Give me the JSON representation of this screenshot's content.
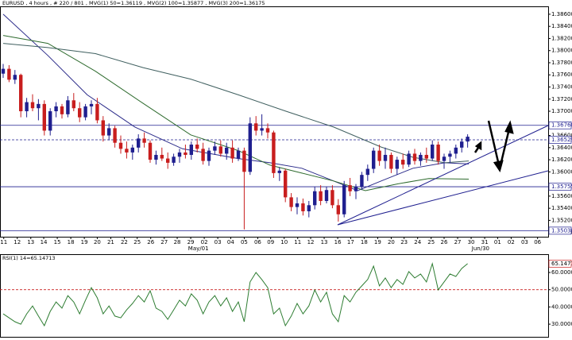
{
  "chart_data": [
    {
      "type": "candlestick",
      "title": "EURUSD , 4 hours , # 220 / 801 , MVG(1) 50=1.36119 , MVG(2) 100=1.35877 , MVG(3) 200=1.36175",
      "xlim": [
        -0.54,
        92.7
      ],
      "ylim": [
        1.3493,
        1.3873
      ],
      "yticks": [
        {
          "value": 1.386,
          "label": "1.38600"
        },
        {
          "value": 1.384,
          "label": "1.38400"
        },
        {
          "value": 1.382,
          "label": "1.38200"
        },
        {
          "value": 1.38,
          "label": "1.38000"
        },
        {
          "value": 1.378,
          "label": "1.37800"
        },
        {
          "value": 1.376,
          "label": "1.37600"
        },
        {
          "value": 1.374,
          "label": "1.37400"
        },
        {
          "value": 1.372,
          "label": "1.37200"
        },
        {
          "value": 1.37,
          "label": "1.37000"
        },
        {
          "value": 1.366,
          "label": "1.36600"
        },
        {
          "value": 1.364,
          "label": "1.36400"
        },
        {
          "value": 1.362,
          "label": "1.36200"
        },
        {
          "value": 1.36,
          "label": "1.36000"
        },
        {
          "value": 1.356,
          "label": "1.35600"
        },
        {
          "value": 1.354,
          "label": "1.35400"
        },
        {
          "value": 1.352,
          "label": "1.35200"
        },
        {
          "value": 1.35,
          "label": "1.35000"
        }
      ],
      "xticks": [
        {
          "value": 0.1,
          "label": "11"
        },
        {
          "value": 2.4,
          "label": "12"
        },
        {
          "value": 4.7,
          "label": "13"
        },
        {
          "value": 6.9,
          "label": "14"
        },
        {
          "value": 9.2,
          "label": "15"
        },
        {
          "value": 11.5,
          "label": "18"
        },
        {
          "value": 13.8,
          "label": "19"
        },
        {
          "value": 16.0,
          "label": "20"
        },
        {
          "value": 18.3,
          "label": "21"
        },
        {
          "value": 20.6,
          "label": "22"
        },
        {
          "value": 22.8,
          "label": "25"
        },
        {
          "value": 25.1,
          "label": "26"
        },
        {
          "value": 27.4,
          "label": "27"
        },
        {
          "value": 29.6,
          "label": "28"
        },
        {
          "value": 31.9,
          "label": "29"
        },
        {
          "value": 34.2,
          "label": "02"
        },
        {
          "value": 36.5,
          "label": "03"
        },
        {
          "value": 38.7,
          "label": "04"
        },
        {
          "value": 41.0,
          "label": "05"
        },
        {
          "value": 43.3,
          "label": "06"
        },
        {
          "value": 45.5,
          "label": "09"
        },
        {
          "value": 47.8,
          "label": "10"
        },
        {
          "value": 50.1,
          "label": "11"
        },
        {
          "value": 52.3,
          "label": "12"
        },
        {
          "value": 54.6,
          "label": "13"
        },
        {
          "value": 56.9,
          "label": "16"
        },
        {
          "value": 59.1,
          "label": "17"
        },
        {
          "value": 61.4,
          "label": "18"
        },
        {
          "value": 63.7,
          "label": "19"
        },
        {
          "value": 66.0,
          "label": "20"
        },
        {
          "value": 68.2,
          "label": "23"
        },
        {
          "value": 70.5,
          "label": "24"
        },
        {
          "value": 72.8,
          "label": "25"
        },
        {
          "value": 75.0,
          "label": "26"
        },
        {
          "value": 77.3,
          "label": "27"
        },
        {
          "value": 79.6,
          "label": "30"
        },
        {
          "value": 81.9,
          "label": "31"
        },
        {
          "value": 84.1,
          "label": "01"
        },
        {
          "value": 86.4,
          "label": "02"
        },
        {
          "value": 88.7,
          "label": "03"
        },
        {
          "value": 90.9,
          "label": "06"
        }
      ],
      "x_sublabels": [
        {
          "value": 33.2,
          "label": "May/01"
        },
        {
          "value": 81.2,
          "label": "Jun/30"
        }
      ],
      "up_color": "#1f1f8f",
      "down_color": "#c81e1e",
      "x": [
        0,
        1,
        2,
        3,
        4,
        5,
        6,
        7,
        8,
        9,
        10,
        11,
        12,
        13,
        14,
        15,
        16,
        17,
        18,
        19,
        20,
        21,
        22,
        23,
        24,
        25,
        26,
        27,
        28,
        29,
        30,
        31,
        32,
        33,
        34,
        35,
        36,
        37,
        38,
        39,
        40,
        41,
        42,
        43,
        44,
        45,
        46,
        47,
        48,
        49,
        50,
        51,
        52,
        53,
        54,
        55,
        56,
        57,
        58,
        59,
        60,
        61,
        62,
        63,
        64,
        65,
        66,
        67,
        68,
        69,
        70,
        71,
        72,
        73,
        74,
        75,
        76,
        77,
        78,
        79
      ],
      "open": [
        1.3762,
        1.377,
        1.3752,
        1.376,
        1.37,
        1.3715,
        1.3705,
        1.3712,
        1.3668,
        1.37,
        1.3708,
        1.3695,
        1.3718,
        1.3705,
        1.369,
        1.3708,
        1.3712,
        1.3685,
        1.366,
        1.3672,
        1.3648,
        1.3638,
        1.3632,
        1.364,
        1.3655,
        1.3648,
        1.362,
        1.3628,
        1.3622,
        1.3615,
        1.3625,
        1.3632,
        1.3628,
        1.3645,
        1.3638,
        1.3618,
        1.3635,
        1.3642,
        1.363,
        1.364,
        1.3622,
        1.3635,
        1.36,
        1.368,
        1.3668,
        1.3672,
        1.3665,
        1.3598,
        1.3602,
        1.3558,
        1.3542,
        1.3548,
        1.3535,
        1.3545,
        1.3568,
        1.3552,
        1.357,
        1.3545,
        1.353,
        1.3578,
        1.3568,
        1.3575,
        1.3595,
        1.3605,
        1.3635,
        1.3618,
        1.3628,
        1.3605,
        1.362,
        1.3612,
        1.363,
        1.3618,
        1.3628,
        1.3622,
        1.3645,
        1.3618,
        1.3625,
        1.363,
        1.364,
        1.365
      ],
      "high": [
        1.3778,
        1.3776,
        1.3768,
        1.3762,
        1.3722,
        1.3728,
        1.372,
        1.3718,
        1.3705,
        1.3715,
        1.3712,
        1.3725,
        1.373,
        1.3715,
        1.3712,
        1.3718,
        1.3722,
        1.3692,
        1.368,
        1.3676,
        1.366,
        1.365,
        1.3645,
        1.3662,
        1.3665,
        1.3652,
        1.3635,
        1.364,
        1.3632,
        1.363,
        1.3638,
        1.3645,
        1.365,
        1.3655,
        1.3648,
        1.364,
        1.365,
        1.3652,
        1.3648,
        1.3652,
        1.364,
        1.364,
        1.369,
        1.3692,
        1.3695,
        1.368,
        1.3668,
        1.3608,
        1.3605,
        1.3565,
        1.3558,
        1.3556,
        1.3552,
        1.3575,
        1.3578,
        1.3575,
        1.3578,
        1.3555,
        1.3585,
        1.359,
        1.358,
        1.36,
        1.3612,
        1.364,
        1.3645,
        1.364,
        1.3632,
        1.3625,
        1.363,
        1.3635,
        1.3638,
        1.3632,
        1.364,
        1.3652,
        1.365,
        1.363,
        1.3635,
        1.3645,
        1.3655,
        1.3662
      ],
      "low": [
        1.3755,
        1.3748,
        1.3745,
        1.369,
        1.369,
        1.37,
        1.3685,
        1.366,
        1.366,
        1.369,
        1.3688,
        1.369,
        1.37,
        1.3682,
        1.3685,
        1.3695,
        1.368,
        1.365,
        1.3652,
        1.364,
        1.363,
        1.3622,
        1.362,
        1.3632,
        1.364,
        1.3615,
        1.3612,
        1.3618,
        1.3605,
        1.361,
        1.3615,
        1.3622,
        1.362,
        1.3632,
        1.3612,
        1.361,
        1.3628,
        1.3625,
        1.362,
        1.3615,
        1.3618,
        1.3505,
        1.3595,
        1.366,
        1.366,
        1.3655,
        1.359,
        1.3585,
        1.355,
        1.3535,
        1.353,
        1.3528,
        1.3525,
        1.3538,
        1.3545,
        1.3548,
        1.354,
        1.3518,
        1.3525,
        1.356,
        1.3555,
        1.357,
        1.3585,
        1.3598,
        1.361,
        1.3605,
        1.3598,
        1.3595,
        1.3605,
        1.3608,
        1.3612,
        1.361,
        1.3615,
        1.3618,
        1.3612,
        1.3605,
        1.3615,
        1.3622,
        1.3632,
        1.364
      ],
      "close": [
        1.377,
        1.3752,
        1.376,
        1.37,
        1.3715,
        1.3705,
        1.3712,
        1.3668,
        1.37,
        1.3708,
        1.3695,
        1.3718,
        1.3705,
        1.369,
        1.3708,
        1.3712,
        1.3685,
        1.366,
        1.3672,
        1.3648,
        1.3638,
        1.3632,
        1.364,
        1.3655,
        1.3648,
        1.362,
        1.3628,
        1.3622,
        1.3615,
        1.3625,
        1.3632,
        1.3628,
        1.3645,
        1.3638,
        1.3618,
        1.3635,
        1.3642,
        1.363,
        1.364,
        1.3622,
        1.3635,
        1.36,
        1.368,
        1.3668,
        1.3672,
        1.3665,
        1.3598,
        1.3602,
        1.3558,
        1.3542,
        1.3548,
        1.3535,
        1.3545,
        1.3568,
        1.3552,
        1.357,
        1.3545,
        1.353,
        1.3578,
        1.3568,
        1.3575,
        1.3595,
        1.3605,
        1.3635,
        1.3618,
        1.3628,
        1.3605,
        1.362,
        1.3612,
        1.363,
        1.3618,
        1.3628,
        1.3622,
        1.3645,
        1.3618,
        1.3625,
        1.363,
        1.364,
        1.365,
        1.3658
      ],
      "series": [
        {
          "color": "#2b2b8a",
          "x": [
            0,
            7.6,
            14.3,
            22.4,
            30.5,
            40.0,
            45.4,
            50.8,
            56.2,
            60.3,
            64.3,
            69.7,
            75.1,
            79.2
          ],
          "values": [
            1.386,
            1.3792,
            1.3727,
            1.3674,
            1.3638,
            1.3622,
            1.3615,
            1.3606,
            1.3585,
            1.3569,
            1.3585,
            1.3606,
            1.3615,
            1.3613
          ]
        },
        {
          "color": "#2e6b2e",
          "x": [
            0,
            7.6,
            15.7,
            23.8,
            31.9,
            40.0,
            45.4,
            50.8,
            56.2,
            61.6,
            67.0,
            72.4,
            79.2
          ],
          "values": [
            1.3825,
            1.3812,
            1.3766,
            1.3713,
            1.3661,
            1.3635,
            1.3611,
            1.3598,
            1.3585,
            1.3569,
            1.358,
            1.3589,
            1.3588
          ]
        },
        {
          "color": "#3f5f5f",
          "x": [
            0,
            7.6,
            15.7,
            23.8,
            31.9,
            40.0,
            48.1,
            56.2,
            64.3,
            69.7,
            75.1,
            79.2
          ],
          "values": [
            1.3812,
            1.3805,
            1.3795,
            1.3772,
            1.3753,
            1.3727,
            1.37,
            1.3674,
            1.3641,
            1.3624,
            1.3615,
            1.3618
          ]
        }
      ],
      "levels": [
        {
          "value": 1.36768,
          "label": "1.36768",
          "dashed": false
        },
        {
          "value": 1.36529,
          "label": "1.36529",
          "dashed": true
        },
        {
          "value": 1.35755,
          "label": "1.35755",
          "dashed": false
        },
        {
          "value": 1.3503,
          "label": "1.35030",
          "dashed": false
        }
      ]
    },
    {
      "type": "line",
      "title": "RSI(1) 14=65.14713",
      "xlim": [
        -0.54,
        92.7
      ],
      "ylim": [
        22.2,
        70.6
      ],
      "yticks": [
        {
          "value": 60,
          "label": "60.00000"
        },
        {
          "value": 50,
          "label": "50.00000"
        },
        {
          "value": 40,
          "label": "40.00000"
        },
        {
          "value": 30,
          "label": "30.00000"
        }
      ],
      "levels": [
        50
      ],
      "current": {
        "value": 65.14713,
        "label": "65.14713"
      },
      "color": "#2e7d32",
      "x": [
        0,
        1,
        2,
        3,
        4,
        5,
        6,
        7,
        8,
        9,
        10,
        11,
        12,
        13,
        14,
        15,
        16,
        17,
        18,
        19,
        20,
        21,
        22,
        23,
        24,
        25,
        26,
        27,
        28,
        29,
        30,
        31,
        32,
        33,
        34,
        35,
        36,
        37,
        38,
        39,
        40,
        41,
        42,
        43,
        44,
        45,
        46,
        47,
        48,
        49,
        50,
        51,
        52,
        53,
        54,
        55,
        56,
        57,
        58,
        59,
        60,
        61,
        62,
        63,
        64,
        65,
        66,
        67,
        68,
        69,
        70,
        71,
        72,
        73,
        74,
        75,
        76,
        77,
        78,
        79
      ],
      "values": [
        36.0,
        33.7,
        31.4,
        30.0,
        36.0,
        40.6,
        34.7,
        29.1,
        37.4,
        42.9,
        39.3,
        46.6,
        42.9,
        36.0,
        43.9,
        51.2,
        45.3,
        36.0,
        40.6,
        34.7,
        33.7,
        38.3,
        42.0,
        46.6,
        42.9,
        49.4,
        39.3,
        37.4,
        32.8,
        38.3,
        43.9,
        40.6,
        47.6,
        43.9,
        36.0,
        42.9,
        46.6,
        40.6,
        45.3,
        37.4,
        42.9,
        31.4,
        54.5,
        60.0,
        55.9,
        51.2,
        36.0,
        39.3,
        29.1,
        34.7,
        42.0,
        36.0,
        40.6,
        49.9,
        42.9,
        48.5,
        36.0,
        31.4,
        46.6,
        42.9,
        48.5,
        52.2,
        55.9,
        63.7,
        52.2,
        56.8,
        51.2,
        55.9,
        53.1,
        60.5,
        56.8,
        59.1,
        54.5,
        65.1,
        49.9,
        54.5,
        59.1,
        57.7,
        62.3,
        65.1
      ]
    }
  ]
}
